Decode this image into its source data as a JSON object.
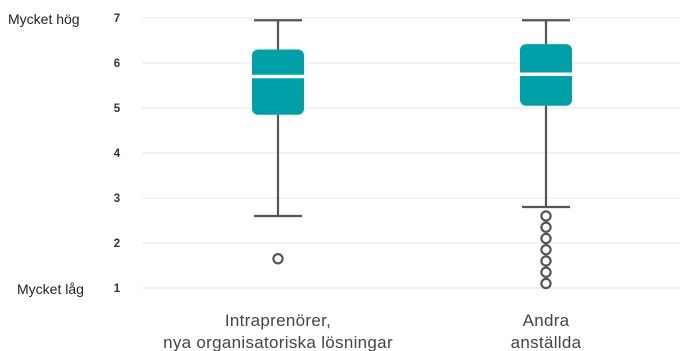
{
  "chart_data": {
    "type": "box",
    "ylim": [
      1,
      7
    ],
    "y_ticks": [
      1,
      2,
      3,
      4,
      5,
      6,
      7
    ],
    "y_anchor_labels": {
      "top": {
        "value": 7,
        "text": "Mycket hög"
      },
      "bottom": {
        "value": 1,
        "text": "Mycket låg"
      }
    },
    "grid": true,
    "box_color": "#00A0A8",
    "whisker_color": "#555555",
    "median_color": "#ffffff",
    "categories": [
      {
        "label_lines": [
          "Intraprenörer,",
          "nya organisatoriska lösningar"
        ],
        "whisker_low": 2.6,
        "q1": 4.85,
        "median": 5.7,
        "q3": 6.3,
        "whisker_high": 6.95,
        "outliers": [
          1.65
        ]
      },
      {
        "label_lines": [
          "Andra",
          "anställda"
        ],
        "whisker_low": 2.8,
        "q1": 5.05,
        "median": 5.75,
        "q3": 6.42,
        "whisker_high": 6.95,
        "outliers": [
          2.6,
          2.35,
          2.1,
          1.85,
          1.6,
          1.35,
          1.1
        ]
      }
    ]
  }
}
